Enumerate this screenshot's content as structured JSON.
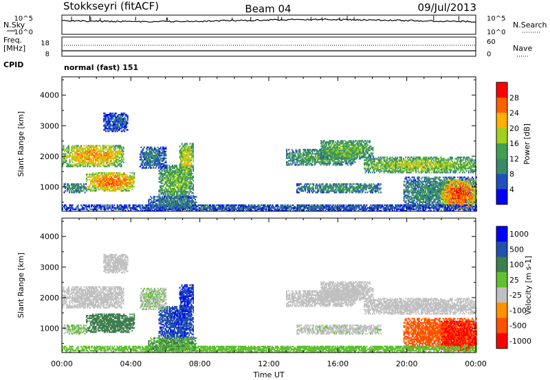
{
  "header": {
    "radar": "Stokkseyri (fitACF)",
    "beam": "Beam 04",
    "date": "09/Jul/2013"
  },
  "strip_labels": {
    "nsky": "N.Sky",
    "nsearch": "N.Search",
    "freq_line1": "Freq.",
    "freq_line2": "[MHz]",
    "nave": "Nave",
    "cpid": "CPID",
    "cpid_value": "normal (fast) 151",
    "noise_ticks_top": "10^5",
    "noise_ticks_bottom": "10^0",
    "freq_ticks": [
      "18",
      "8"
    ],
    "nave_ticks": [
      "60",
      "0"
    ]
  },
  "colors": {
    "power_scale": [
      "#0000ff",
      "#2050c0",
      "#3a8a68",
      "#40a050",
      "#a0d020",
      "#ffb000",
      "#ff6000",
      "#ff0000"
    ],
    "velocity_scale": [
      "#0000ff",
      "#2050b0",
      "#3f7f4f",
      "#60c030",
      "#c0c0c0",
      "#ff9000",
      "#ff5000",
      "#ff0000"
    ]
  },
  "chart_data": [
    {
      "type": "heatmap",
      "panel": "power",
      "ylabel": "Slant Range [km]",
      "ylim": [
        200,
        4600
      ],
      "yticks": [
        "1000",
        "2000",
        "3000",
        "4000"
      ],
      "xlim": [
        0,
        24
      ],
      "colorbar_label": "Power [dB]",
      "colorbar_ticks": [
        "4",
        "8",
        "12",
        "16",
        "20",
        "24",
        "28"
      ],
      "color_range": [
        0,
        32
      ]
    },
    {
      "type": "heatmap",
      "panel": "velocity",
      "ylabel": "Slant Range [km]",
      "ylim": [
        200,
        4600
      ],
      "yticks": [
        "1000",
        "2000",
        "3000",
        "4000"
      ],
      "xlim": [
        0,
        24
      ],
      "xlabel": "Time UT",
      "xticks": [
        "00:00",
        "04:00",
        "08:00",
        "12:00",
        "16:00",
        "20:00",
        "00:00"
      ],
      "colorbar_label": "Velocity [m s-1]",
      "colorbar_ticks": [
        "1000",
        "500",
        "100",
        "25",
        "-25",
        "-100",
        "-500",
        "-1000"
      ]
    }
  ],
  "scatter_regions": [
    {
      "t0": 0.0,
      "t1": 3.6,
      "r0": 1650,
      "r1": 2350,
      "pwr": 20,
      "vel": 0
    },
    {
      "t0": 1.4,
      "t1": 4.2,
      "r0": 850,
      "r1": 1450,
      "pwr": 22,
      "vel": 200
    },
    {
      "t0": 0.1,
      "t1": 1.4,
      "r0": 800,
      "r1": 1100,
      "pwr": 10,
      "vel": 30
    },
    {
      "t0": 5.6,
      "t1": 7.6,
      "r0": 600,
      "r1": 1700,
      "pwr": 14,
      "vel": 800
    },
    {
      "t0": 6.8,
      "t1": 7.6,
      "r0": 1400,
      "r1": 2400,
      "pwr": 18,
      "vel": 900
    },
    {
      "t0": 4.5,
      "t1": 6.0,
      "r0": 1600,
      "r1": 2300,
      "pwr": 8,
      "vel": 20
    },
    {
      "t0": 13.0,
      "t1": 17.0,
      "r0": 1700,
      "r1": 2200,
      "pwr": 12,
      "vel": 0
    },
    {
      "t0": 15.0,
      "t1": 18.0,
      "r0": 1900,
      "r1": 2500,
      "pwr": 14,
      "vel": 0
    },
    {
      "t0": 17.5,
      "t1": 24.0,
      "r0": 1450,
      "r1": 1950,
      "pwr": 16,
      "vel": 0
    },
    {
      "t0": 13.6,
      "t1": 18.5,
      "r0": 800,
      "r1": 1100,
      "pwr": 10,
      "vel": 10
    },
    {
      "t0": 19.8,
      "t1": 24.0,
      "r0": 300,
      "r1": 1300,
      "pwr": 10,
      "vel": -150
    },
    {
      "t0": 22.0,
      "t1": 24.0,
      "r0": 250,
      "r1": 1200,
      "pwr": 24,
      "vel": -600
    },
    {
      "t0": 0.0,
      "t1": 24.0,
      "r0": 200,
      "r1": 420,
      "pwr": 6,
      "vel": 60
    },
    {
      "t0": 2.4,
      "t1": 3.8,
      "r0": 2800,
      "r1": 3400,
      "pwr": 6,
      "vel": 0
    },
    {
      "t0": 5.0,
      "t1": 7.8,
      "r0": 250,
      "r1": 700,
      "pwr": 8,
      "vel": 100
    }
  ]
}
